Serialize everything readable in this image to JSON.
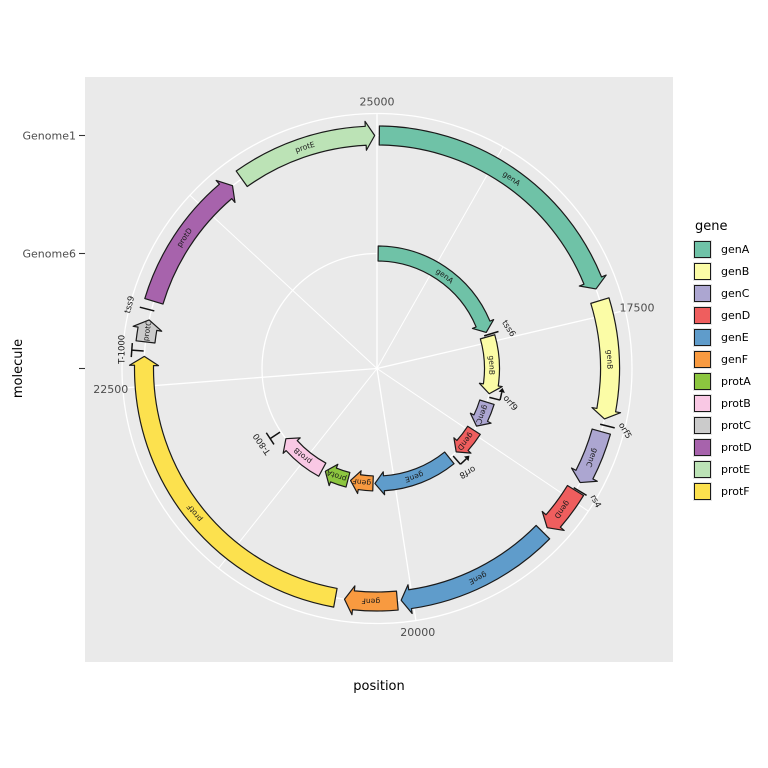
{
  "page": {
    "background": "#ffffff"
  },
  "panel": {
    "background": "#eaeaea",
    "grid_color": "#ffffff"
  },
  "chart_data": {
    "type": "circular_genome_map",
    "position_axis": {
      "title": "position",
      "domain": [
        15465,
        25000
      ],
      "major_breaks": [
        17500,
        20000,
        22500,
        25000
      ],
      "minor_breaks": [
        16250,
        18750,
        21250,
        23750
      ],
      "direction": "clockwise"
    },
    "molecule_axis": {
      "title": "molecule",
      "tick_labels": [
        "Genome1",
        "Genome6",
        ""
      ]
    },
    "legend": {
      "title": "gene",
      "entries": [
        {
          "label": "genA",
          "color": "#6fc2a7"
        },
        {
          "label": "genB",
          "color": "#fbfca6"
        },
        {
          "label": "genC",
          "color": "#aca6d1"
        },
        {
          "label": "genD",
          "color": "#ef5e5e"
        },
        {
          "label": "genE",
          "color": "#5f9ccb"
        },
        {
          "label": "genF",
          "color": "#f89a40"
        },
        {
          "label": "protA",
          "color": "#8cc63f"
        },
        {
          "label": "protB",
          "color": "#f9c8e4"
        },
        {
          "label": "protC",
          "color": "#cbcbcb"
        },
        {
          "label": "protD",
          "color": "#a763ac"
        },
        {
          "label": "protE",
          "color": "#bce3b6"
        },
        {
          "label": "protF",
          "color": "#fce14e"
        }
      ]
    },
    "molecules": [
      {
        "name": "Genome1",
        "genes": [
          {
            "name": "genA",
            "start": 15480,
            "end": 17320,
            "strand": "+"
          },
          {
            "name": "genB",
            "start": 17400,
            "end": 18180,
            "strand": "+"
          },
          {
            "name": "genC",
            "start": 18265,
            "end": 18625,
            "strand": "+"
          },
          {
            "name": "genD",
            "start": 18685,
            "end": 18990,
            "strand": "+"
          },
          {
            "name": "genE",
            "start": 19030,
            "end": 20075,
            "strand": "+"
          },
          {
            "name": "genF",
            "start": 20100,
            "end": 20445,
            "strand": "+"
          },
          {
            "name": "protF",
            "start": 20505,
            "end": 22695,
            "strand": "+"
          },
          {
            "name": "protC",
            "start": 22790,
            "end": 22935,
            "strand": "+"
          },
          {
            "name": "protD",
            "start": 23060,
            "end": 23985,
            "strand": "+"
          },
          {
            "name": "protE",
            "start": 24060,
            "end": 24985,
            "strand": "+"
          }
        ],
        "features": [
          {
            "name": "orf5",
            "pos": 18220,
            "glyph": "tick"
          },
          {
            "name": "rs4",
            "pos": 18675,
            "glyph": "tick"
          },
          {
            "name": "T-1000",
            "pos": 22730,
            "glyph": "terminator"
          },
          {
            "name": "tss9",
            "pos": 23000,
            "glyph": "tick"
          }
        ]
      },
      {
        "name": "Genome6",
        "genes": [
          {
            "name": "genA",
            "start": 15480,
            "end": 17365,
            "strand": "+"
          },
          {
            "name": "genB",
            "start": 17425,
            "end": 18185,
            "strand": "+"
          },
          {
            "name": "genC",
            "start": 18300,
            "end": 18645,
            "strand": "+"
          },
          {
            "name": "genD",
            "start": 18710,
            "end": 19080,
            "strand": "+"
          },
          {
            "name": "genE",
            "start": 19200,
            "end": 20260,
            "strand": "+"
          },
          {
            "name": "genF",
            "start": 20285,
            "end": 20585,
            "strand": "+"
          },
          {
            "name": "protA",
            "start": 20620,
            "end": 20940,
            "strand": "+"
          },
          {
            "name": "protB",
            "start": 20985,
            "end": 21620,
            "strand": "+"
          }
        ],
        "features": [
          {
            "name": "tss6",
            "pos": 17400,
            "glyph": "tick"
          },
          {
            "name": "orf9",
            "pos": 18230,
            "glyph": "promoter"
          },
          {
            "name": "orf8",
            "pos": 19145,
            "glyph": "promoter"
          },
          {
            "name": "T-800",
            "pos": 21735,
            "glyph": "terminator"
          }
        ]
      }
    ]
  }
}
